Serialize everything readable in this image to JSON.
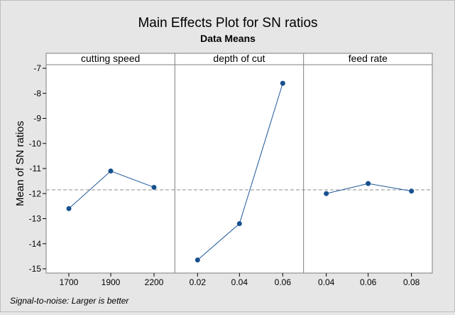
{
  "chart_data": {
    "type": "line",
    "title": "Main Effects Plot for SN ratios",
    "subtitle": "Data Means",
    "ylabel": "Mean of SN ratios",
    "ylim": [
      -15.1,
      -6.8
    ],
    "yticks": [
      -7,
      -8,
      -9,
      -10,
      -11,
      -12,
      -13,
      -14,
      -15
    ],
    "reference_line": -11.85,
    "footnote": "Signal-to-noise: Larger is better",
    "panels": [
      {
        "name": "cutting speed",
        "x": [
          "1700",
          "1900",
          "2200"
        ],
        "values": [
          -12.6,
          -11.1,
          -11.75
        ]
      },
      {
        "name": "depth of cut",
        "x": [
          "0.02",
          "0.04",
          "0.06"
        ],
        "values": [
          -14.65,
          -13.2,
          -7.6
        ]
      },
      {
        "name": "feed rate",
        "x": [
          "0.04",
          "0.06",
          "0.08"
        ],
        "values": [
          -12.0,
          -11.6,
          -11.9
        ]
      }
    ],
    "colors": {
      "series": "#1f5797",
      "marker": "#17508f",
      "reference": "#8c8c8c",
      "panel_bg": "#ffffff"
    }
  }
}
